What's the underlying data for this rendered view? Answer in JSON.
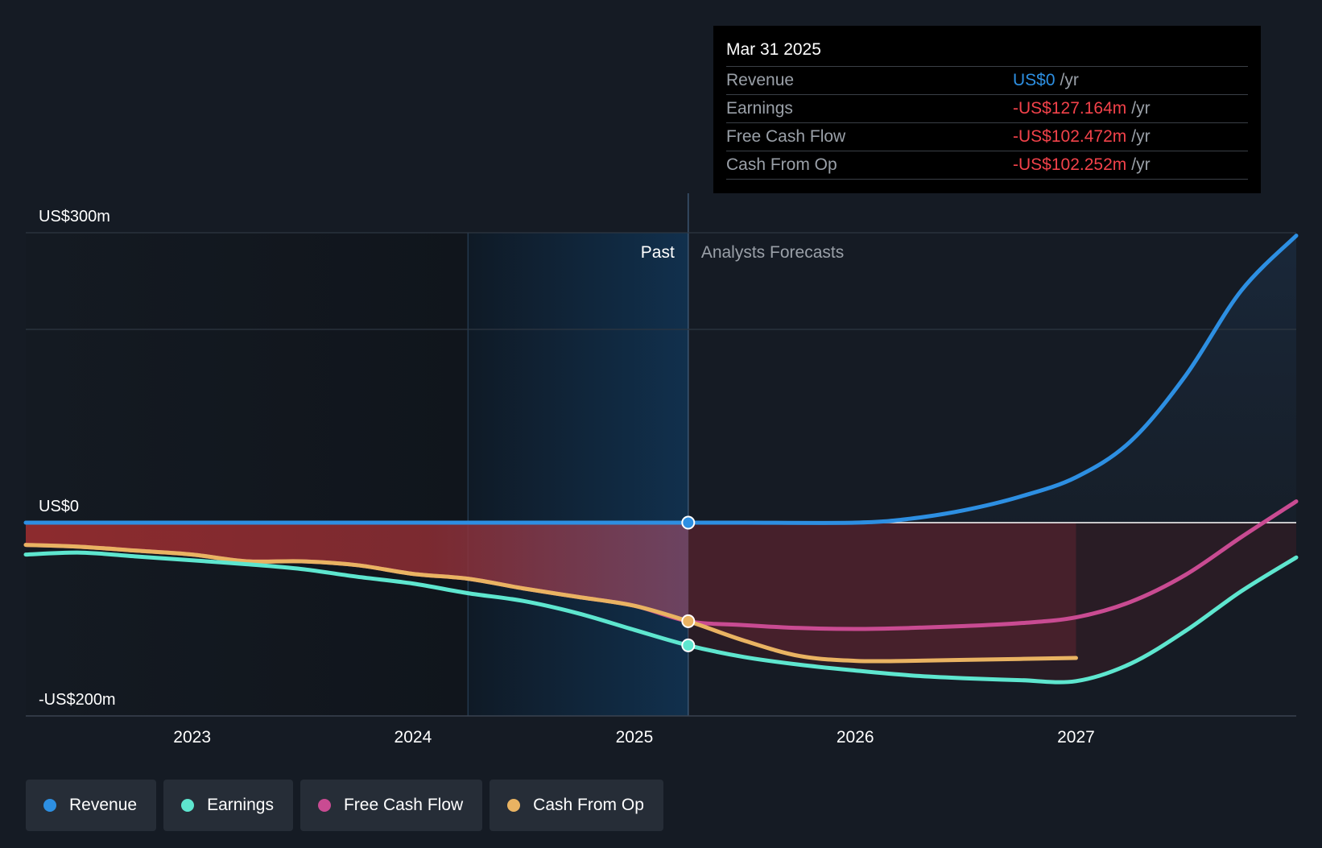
{
  "chart_data": {
    "type": "line",
    "x_domain": [
      "2022-04-01",
      "2027-12-31"
    ],
    "ylim": [
      -200,
      300
    ],
    "x_ticks": [
      {
        "label": "2023",
        "date": "2023-01-01"
      },
      {
        "label": "2024",
        "date": "2024-01-01"
      },
      {
        "label": "2025",
        "date": "2025-01-01"
      },
      {
        "label": "2026",
        "date": "2026-01-01"
      },
      {
        "label": "2027",
        "date": "2027-01-01"
      }
    ],
    "y_ticks": [
      {
        "label": "US$300m",
        "value": 300
      },
      {
        "label": "US$0",
        "value": 0
      },
      {
        "label": "-US$200m",
        "value": -200
      }
    ],
    "gridlines": [
      300,
      200,
      0
    ],
    "past_label": "Past",
    "forecast_label": "Analysts Forecasts",
    "past_highlight_start": "2024-04-01",
    "divider_date": "2025-03-31",
    "series": [
      {
        "name": "Revenue",
        "color": "#2d8fe2",
        "points": [
          [
            "2022-04-01",
            0
          ],
          [
            "2023-01-01",
            0
          ],
          [
            "2024-01-01",
            0
          ],
          [
            "2025-01-01",
            0
          ],
          [
            "2025-03-31",
            0
          ],
          [
            "2025-07-01",
            0
          ],
          [
            "2026-01-01",
            0
          ],
          [
            "2026-04-01",
            4
          ],
          [
            "2026-07-01",
            13
          ],
          [
            "2026-10-01",
            27
          ],
          [
            "2027-01-01",
            47
          ],
          [
            "2027-04-01",
            84
          ],
          [
            "2027-07-01",
            152
          ],
          [
            "2027-10-01",
            240
          ],
          [
            "2027-12-31",
            297
          ]
        ]
      },
      {
        "name": "Earnings",
        "color": "#5ee6cf",
        "points": [
          [
            "2022-04-01",
            -33
          ],
          [
            "2022-07-01",
            -31
          ],
          [
            "2022-10-01",
            -35
          ],
          [
            "2023-01-01",
            -39
          ],
          [
            "2023-04-01",
            -43
          ],
          [
            "2023-07-01",
            -48
          ],
          [
            "2023-10-01",
            -56
          ],
          [
            "2024-01-01",
            -63
          ],
          [
            "2024-04-01",
            -73
          ],
          [
            "2024-07-01",
            -81
          ],
          [
            "2024-10-01",
            -94
          ],
          [
            "2025-01-01",
            -111
          ],
          [
            "2025-03-31",
            -127
          ],
          [
            "2025-07-01",
            -139
          ],
          [
            "2025-10-01",
            -147
          ],
          [
            "2026-01-01",
            -153
          ],
          [
            "2026-04-01",
            -158
          ],
          [
            "2026-07-01",
            -161
          ],
          [
            "2026-10-01",
            -163
          ],
          [
            "2027-01-01",
            -164
          ],
          [
            "2027-04-01",
            -146
          ],
          [
            "2027-07-01",
            -112
          ],
          [
            "2027-10-01",
            -71
          ],
          [
            "2027-12-31",
            -36
          ]
        ]
      },
      {
        "name": "Free Cash Flow",
        "color": "#c94b92",
        "points": [
          [
            "2022-04-01",
            -23
          ],
          [
            "2022-07-01",
            -25
          ],
          [
            "2022-10-01",
            -29
          ],
          [
            "2023-01-01",
            -33
          ],
          [
            "2023-04-01",
            -40
          ],
          [
            "2023-07-01",
            -40
          ],
          [
            "2023-10-01",
            -44
          ],
          [
            "2024-01-01",
            -53
          ],
          [
            "2024-04-01",
            -58
          ],
          [
            "2024-07-01",
            -68
          ],
          [
            "2024-10-01",
            -77
          ],
          [
            "2025-01-01",
            -86
          ],
          [
            "2025-03-31",
            -102
          ],
          [
            "2025-07-01",
            -106
          ],
          [
            "2025-10-01",
            -109
          ],
          [
            "2026-01-01",
            -110
          ],
          [
            "2026-04-01",
            -109
          ],
          [
            "2026-07-01",
            -107
          ],
          [
            "2026-10-01",
            -104
          ],
          [
            "2027-01-01",
            -98
          ],
          [
            "2027-04-01",
            -82
          ],
          [
            "2027-07-01",
            -54
          ],
          [
            "2027-10-01",
            -15
          ],
          [
            "2027-12-31",
            22
          ]
        ]
      },
      {
        "name": "Cash From Op",
        "color": "#e9b362",
        "points": [
          [
            "2022-04-01",
            -23
          ],
          [
            "2022-07-01",
            -25
          ],
          [
            "2022-10-01",
            -29
          ],
          [
            "2023-01-01",
            -33
          ],
          [
            "2023-04-01",
            -40
          ],
          [
            "2023-07-01",
            -40
          ],
          [
            "2023-10-01",
            -44
          ],
          [
            "2024-01-01",
            -53
          ],
          [
            "2024-04-01",
            -58
          ],
          [
            "2024-07-01",
            -68
          ],
          [
            "2024-10-01",
            -77
          ],
          [
            "2025-01-01",
            -86
          ],
          [
            "2025-03-31",
            -102
          ],
          [
            "2025-07-01",
            -122
          ],
          [
            "2025-10-01",
            -138
          ],
          [
            "2026-01-01",
            -143
          ],
          [
            "2026-04-01",
            -143
          ],
          [
            "2026-07-01",
            -142
          ],
          [
            "2026-10-01",
            -141
          ],
          [
            "2027-01-01",
            -140
          ]
        ]
      }
    ],
    "highlight_points": [
      {
        "series": "Revenue",
        "date": "2025-03-31",
        "value": 0
      },
      {
        "series": "Cash From Op",
        "date": "2025-03-31",
        "value": -102
      },
      {
        "series": "Earnings",
        "date": "2025-03-31",
        "value": -127
      }
    ]
  },
  "tooltip": {
    "date": "Mar 31 2025",
    "unit": "/yr",
    "rows": [
      {
        "label": "Revenue",
        "value": "US$0",
        "color": "#2d8fe2"
      },
      {
        "label": "Earnings",
        "value": "-US$127.164m",
        "color": "#f2424a"
      },
      {
        "label": "Free Cash Flow",
        "value": "-US$102.472m",
        "color": "#f2424a"
      },
      {
        "label": "Cash From Op",
        "value": "-US$102.252m",
        "color": "#f2424a"
      }
    ]
  },
  "legend": [
    {
      "label": "Revenue",
      "color": "#2d8fe2"
    },
    {
      "label": "Earnings",
      "color": "#5ee6cf"
    },
    {
      "label": "Free Cash Flow",
      "color": "#c94b92"
    },
    {
      "label": "Cash From Op",
      "color": "#e9b362"
    }
  ]
}
